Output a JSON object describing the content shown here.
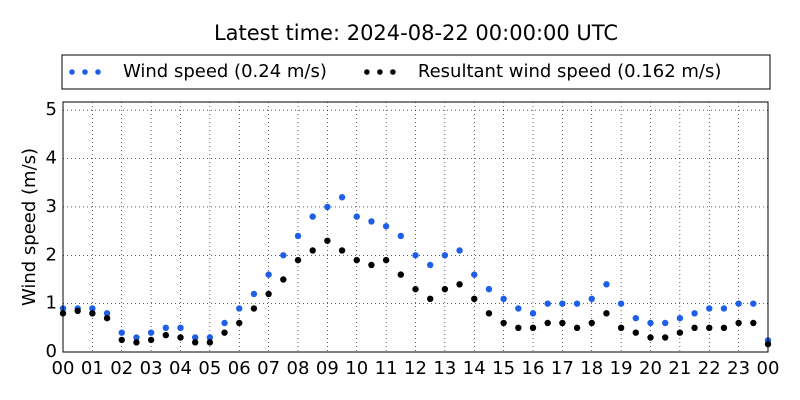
{
  "chart_data": {
    "type": "scatter",
    "title": "Latest time: 2024-08-22 00:00:00 UTC",
    "y_label": "Wind speed (m/s)",
    "x": [
      0,
      0.5,
      1,
      1.5,
      2,
      2.5,
      3,
      3.5,
      4,
      4.5,
      5,
      5.5,
      6,
      6.5,
      7,
      7.5,
      8,
      8.5,
      9,
      9.5,
      10,
      10.5,
      11,
      11.5,
      12,
      12.5,
      13,
      13.5,
      14,
      14.5,
      15,
      15.5,
      16,
      16.5,
      17,
      17.5,
      18,
      18.5,
      19,
      19.5,
      20,
      20.5,
      21,
      21.5,
      22,
      22.5,
      23,
      23.5,
      24
    ],
    "series": [
      {
        "name": "Wind speed (0.24 m/s)",
        "color": "#1f5fe8",
        "values": [
          0.9,
          0.9,
          0.9,
          0.8,
          0.4,
          0.3,
          0.4,
          0.5,
          0.5,
          0.3,
          0.3,
          0.6,
          0.9,
          1.2,
          1.6,
          2.0,
          2.4,
          2.8,
          3.0,
          3.2,
          2.8,
          2.7,
          2.6,
          2.4,
          2.0,
          1.8,
          2.0,
          2.1,
          1.6,
          1.3,
          1.1,
          0.9,
          0.8,
          1.0,
          1.0,
          1.0,
          1.1,
          1.4,
          1.0,
          0.7,
          0.6,
          0.6,
          0.7,
          0.8,
          0.9,
          0.9,
          1.0,
          1.0,
          0.24
        ]
      },
      {
        "name": "Resultant wind speed (0.162 m/s)",
        "color": "#000000",
        "values": [
          0.8,
          0.85,
          0.8,
          0.7,
          0.25,
          0.2,
          0.25,
          0.35,
          0.3,
          0.2,
          0.2,
          0.4,
          0.6,
          0.9,
          1.2,
          1.5,
          1.9,
          2.1,
          2.3,
          2.1,
          1.9,
          1.8,
          1.9,
          1.6,
          1.3,
          1.1,
          1.3,
          1.4,
          1.1,
          0.8,
          0.6,
          0.5,
          0.5,
          0.6,
          0.6,
          0.5,
          0.6,
          0.8,
          0.5,
          0.4,
          0.3,
          0.3,
          0.4,
          0.5,
          0.5,
          0.5,
          0.6,
          0.6,
          0.162
        ]
      }
    ],
    "xlim": [
      0,
      24
    ],
    "xticks": [
      {
        "value": 0,
        "label": "00"
      },
      {
        "value": 1,
        "label": "01"
      },
      {
        "value": 2,
        "label": "02"
      },
      {
        "value": 3,
        "label": "03"
      },
      {
        "value": 4,
        "label": "04"
      },
      {
        "value": 5,
        "label": "05"
      },
      {
        "value": 6,
        "label": "06"
      },
      {
        "value": 7,
        "label": "07"
      },
      {
        "value": 8,
        "label": "08"
      },
      {
        "value": 9,
        "label": "09"
      },
      {
        "value": 10,
        "label": "10"
      },
      {
        "value": 11,
        "label": "11"
      },
      {
        "value": 12,
        "label": "12"
      },
      {
        "value": 13,
        "label": "13"
      },
      {
        "value": 14,
        "label": "14"
      },
      {
        "value": 15,
        "label": "15"
      },
      {
        "value": 16,
        "label": "16"
      },
      {
        "value": 17,
        "label": "17"
      },
      {
        "value": 18,
        "label": "18"
      },
      {
        "value": 19,
        "label": "19"
      },
      {
        "value": 20,
        "label": "20"
      },
      {
        "value": 21,
        "label": "21"
      },
      {
        "value": 22,
        "label": "22"
      },
      {
        "value": 23,
        "label": "23"
      },
      {
        "value": 24,
        "label": "00"
      }
    ],
    "ylim": [
      0,
      5.17
    ],
    "yticks": [
      0,
      1,
      2,
      3,
      4,
      5
    ],
    "grid": true
  }
}
